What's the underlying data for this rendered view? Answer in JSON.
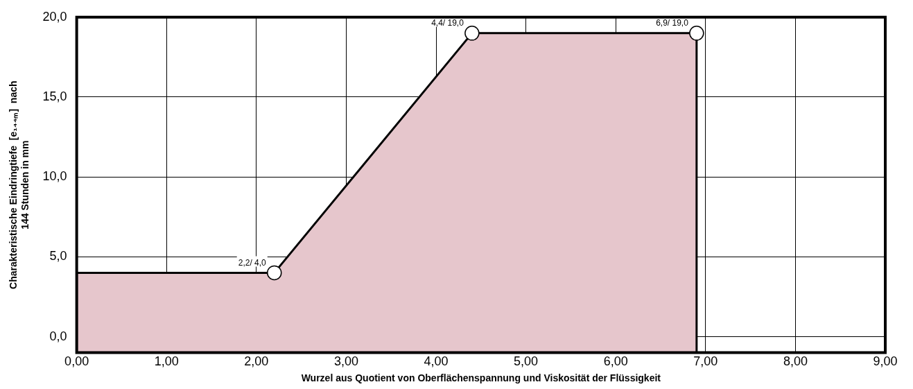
{
  "chart_data": {
    "type": "area",
    "xlabel": "Wurzel aus Quotient von Oberflächenspannung und Viskosität der Flüssigkeit",
    "ylabel": "Charakteristische Eindringtiefe  [e₁₄₄ₘ]  nach 144 Stunden in mm",
    "series": [
      {
        "color": "#e6c6cc",
        "x": [
          0,
          0,
          2.2,
          4.4,
          6.9,
          6.9
        ],
        "values": [
          -1,
          4,
          4,
          19,
          19,
          -1
        ],
        "marker": "none"
      },
      {
        "type": "scatter",
        "color": "#000000",
        "x": [
          2.2,
          4.4,
          6.9
        ],
        "values": [
          4,
          19,
          19
        ],
        "marker": "circle",
        "value_labels": [
          "2,2/ 4,0",
          "4,4/ 19,0",
          "6,9/ 19,0"
        ]
      }
    ],
    "xlim": [
      0,
      9
    ],
    "xticks": [
      {
        "value": 0,
        "label": "0,00"
      },
      {
        "value": 1,
        "label": "1,00"
      },
      {
        "value": 2,
        "label": "2,00"
      },
      {
        "value": 3,
        "label": "3,00"
      },
      {
        "value": 4,
        "label": "4,00"
      },
      {
        "value": 5,
        "label": "5,00"
      },
      {
        "value": 6,
        "label": "6,00"
      },
      {
        "value": 7,
        "label": "7,00"
      },
      {
        "value": 8,
        "label": "8,00"
      },
      {
        "value": 9,
        "label": "9,00"
      }
    ],
    "ylim": [
      -1,
      20
    ],
    "yticks": [
      {
        "value": 0,
        "label": "0,0"
      },
      {
        "value": 5,
        "label": "5,0"
      },
      {
        "value": 10,
        "label": "10,0"
      },
      {
        "value": 15,
        "label": "15,0"
      },
      {
        "value": 20,
        "label": "20,0"
      }
    ],
    "grid": true,
    "legend": false
  }
}
